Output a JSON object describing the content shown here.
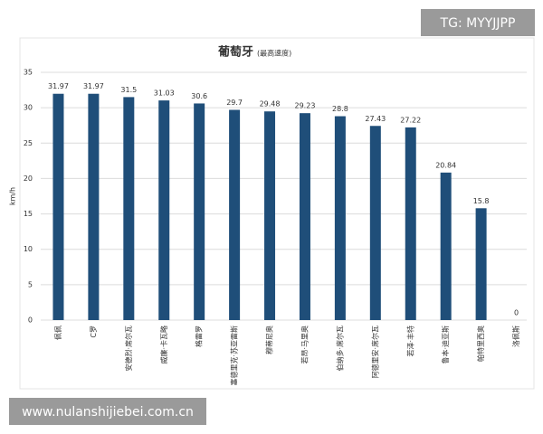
{
  "chart_data": {
    "type": "bar",
    "title": "葡萄牙",
    "subtitle": "(最高速度)",
    "y_label": "km/h",
    "categories": [
      "佩佩",
      "C罗",
      "安德烈·席尔瓦",
      "威廉·卡瓦略",
      "格雷罗",
      "塞德里克·苏亚雷斯",
      "穆蒂尼奥",
      "若昂·马里奥",
      "伯纳多·席尔瓦",
      "阿德里安·席尔瓦",
      "若泽·丰特",
      "鲁本·迪亚斯",
      "帕特里西奥",
      "洛佩斯"
    ],
    "values": [
      31.97,
      31.97,
      31.5,
      31.03,
      30.6,
      29.7,
      29.48,
      29.23,
      28.8,
      27.43,
      27.22,
      20.84,
      15.8,
      0
    ],
    "color": "#1f4e79",
    "ylim": [
      0,
      35
    ],
    "yticks": [
      0,
      5,
      10,
      15,
      20,
      25,
      30,
      35
    ],
    "grid": true
  },
  "watermarks": {
    "top": "TG: MYYJJPP",
    "bottom": "www.nulanshijiebei.com.cn"
  }
}
